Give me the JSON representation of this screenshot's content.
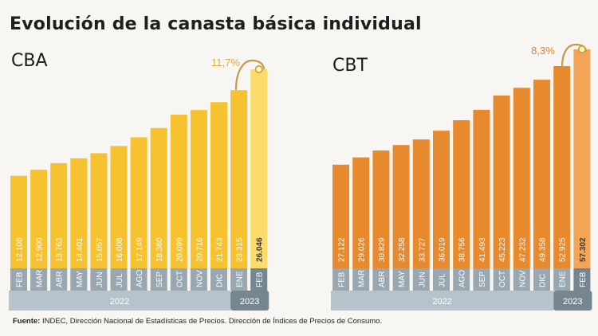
{
  "title": "Evolución de la canasta básica individual",
  "source": {
    "label": "Fuente:",
    "text": "INDEC, Dirección Nacional de Estadísticas de Precios. Dirección de Índices de Precios de Consumo."
  },
  "colors": {
    "cba_bar": "#f6c230",
    "cba_highlight": "#fbdc6a",
    "cba_change_text": "#e4a83c",
    "cbt_bar": "#e7892d",
    "cbt_highlight": "#f3a557",
    "cbt_change_text": "#d9822c",
    "month_band": "#98a7b0",
    "year_band": "#b6c3cb",
    "year_band_dark": "#758690",
    "arrow": "#c79a46"
  },
  "chart_data": [
    {
      "type": "bar",
      "name": "CBA",
      "title": "CBA",
      "categories": [
        "FEB",
        "MAR",
        "ABR",
        "MAY",
        "JUN",
        "JUL",
        "AGO",
        "SEP",
        "OCT",
        "NOV",
        "DIC",
        "ENE",
        "FEB"
      ],
      "values": [
        12108,
        12900,
        13763,
        14401,
        15057,
        16008,
        17149,
        18360,
        20099,
        20716,
        21743,
        23315,
        26046
      ],
      "value_labels": [
        "12.108",
        "12.900",
        "13.763",
        "14.401",
        "15.057",
        "16.008",
        "17.149",
        "18.360",
        "20.099",
        "20.716",
        "21.743",
        "23.315",
        "26.046"
      ],
      "year_groups": [
        {
          "label": "2022",
          "count": 11
        },
        {
          "label": "2023",
          "count": 2
        }
      ],
      "annotation": "11,7%",
      "grid": false,
      "legend": "none"
    },
    {
      "type": "bar",
      "name": "CBT",
      "title": "CBT",
      "categories": [
        "FEB",
        "MAR",
        "ABR",
        "MAY",
        "JUN",
        "JUL",
        "AGO",
        "SEP",
        "OCT",
        "NOV",
        "DIC",
        "ENE",
        "FEB"
      ],
      "values": [
        27122,
        29026,
        30829,
        32258,
        33727,
        36019,
        38756,
        41493,
        45223,
        47232,
        49358,
        52925,
        57302
      ],
      "value_labels": [
        "27.122",
        "29.026",
        "30.829",
        "32.258",
        "33.727",
        "36.019",
        "38.756",
        "41.493",
        "45.223",
        "47.232",
        "49.358",
        "52.925",
        "57.302"
      ],
      "year_groups": [
        {
          "label": "2022",
          "count": 11
        },
        {
          "label": "2023",
          "count": 2
        }
      ],
      "annotation": "8,3%",
      "grid": false,
      "legend": "none"
    }
  ]
}
